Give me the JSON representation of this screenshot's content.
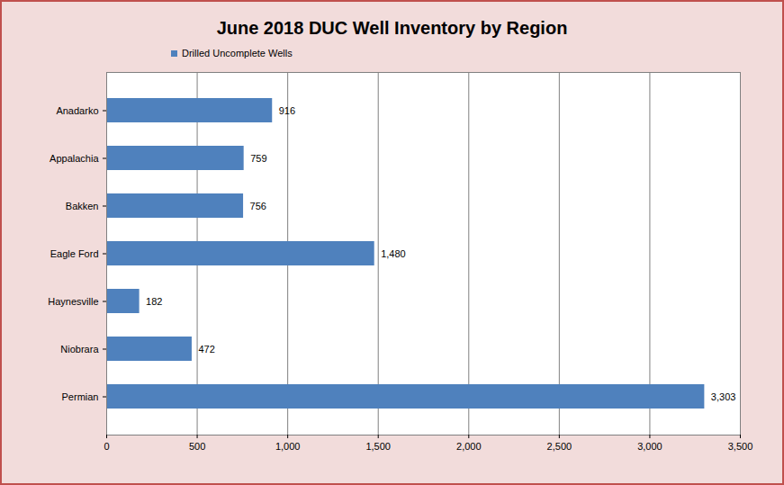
{
  "chart_data": {
    "type": "bar",
    "title": "June 2018 DUC Well Inventory by Region",
    "orientation": "horizontal",
    "categories": [
      "Anadarko",
      "Appalachia",
      "Bakken",
      "Eagle Ford",
      "Haynesville",
      "Niobrara",
      "Permian"
    ],
    "series": [
      {
        "name": "Drilled Uncomplete Wells",
        "color": "#4f81bd",
        "values": [
          916,
          759,
          756,
          1480,
          182,
          472,
          3303
        ],
        "value_labels": [
          "916",
          "759",
          "756",
          "1,480",
          "182",
          "472",
          "3,303"
        ]
      }
    ],
    "xlim": [
      0,
      3500
    ],
    "xticks": [
      500,
      1000,
      1500,
      2000,
      2500,
      3000,
      3500
    ],
    "grid": true,
    "legend": "top",
    "data_labels": true
  }
}
